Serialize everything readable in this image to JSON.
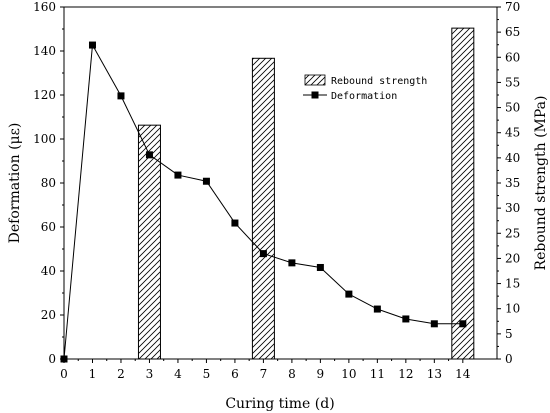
{
  "chart_data": {
    "type": "bar+line",
    "xlabel": "Curing time (d)",
    "ylabel": "Deformation (με)",
    "ylabel_right": "Rebound strength (MPa)",
    "xlim": [
      0,
      15.2
    ],
    "ylim": [
      0,
      160
    ],
    "ylim_right": [
      0,
      70
    ],
    "x_ticks": [
      0,
      1,
      2,
      3,
      4,
      5,
      6,
      7,
      8,
      9,
      10,
      11,
      12,
      13,
      14
    ],
    "y_ticks": [
      0,
      20,
      40,
      60,
      80,
      100,
      120,
      140,
      160
    ],
    "y_ticks_right": [
      0,
      5,
      10,
      15,
      20,
      25,
      30,
      35,
      40,
      45,
      50,
      55,
      60,
      65,
      70
    ],
    "legend_position": "top-right",
    "series": [
      {
        "name": "Rebound strength",
        "kind": "bar",
        "axis": "right",
        "style": "hatched",
        "x": [
          3,
          7,
          14
        ],
        "values": [
          46.5,
          59.8,
          65.8
        ]
      },
      {
        "name": "Deformation",
        "kind": "line",
        "axis": "left",
        "marker": "square",
        "x": [
          0,
          1,
          2,
          3,
          4,
          5,
          6,
          7,
          8,
          9,
          10,
          11,
          12,
          13,
          14
        ],
        "values": [
          0,
          142.7,
          119.6,
          92.8,
          83.6,
          80.8,
          61.8,
          47.9,
          43.7,
          41.6,
          29.5,
          22.7,
          18.2,
          16.0,
          16.0
        ]
      }
    ]
  }
}
